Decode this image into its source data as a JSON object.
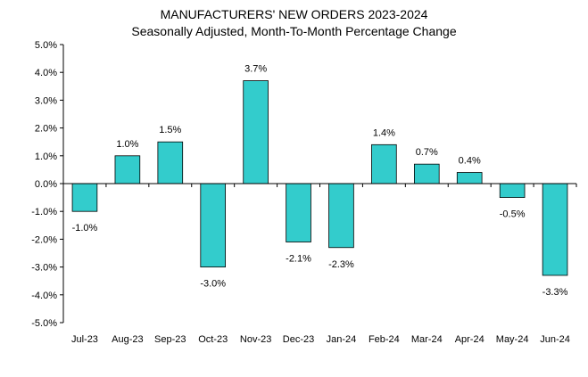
{
  "chart_data": {
    "type": "bar",
    "title": "MANUFACTURERS' NEW ORDERS 2023-2024",
    "subtitle": "Seasonally Adjusted,  Month-To-Month Percentage Change",
    "xlabel": "",
    "ylabel": "",
    "categories": [
      "Jul-23",
      "Aug-23",
      "Sep-23",
      "Oct-23",
      "Nov-23",
      "Dec-23",
      "Jan-24",
      "Feb-24",
      "Mar-24",
      "Apr-24",
      "May-24",
      "Jun-24"
    ],
    "values": [
      -1.0,
      1.0,
      1.5,
      -3.0,
      3.7,
      -2.1,
      -2.3,
      1.4,
      0.7,
      0.4,
      -0.5,
      -3.3
    ],
    "data_labels": [
      "-1.0%",
      "1.0%",
      "1.5%",
      "-3.0%",
      "3.7%",
      "-2.1%",
      "-2.3%",
      "1.4%",
      "0.7%",
      "0.4%",
      "-0.5%",
      "-3.3%"
    ],
    "ylim": [
      -5,
      5
    ],
    "yticks": [
      5,
      4,
      3,
      2,
      1,
      0,
      -1,
      -2,
      -3,
      -4,
      -5
    ],
    "ytick_labels": [
      "5.0%",
      "4.0%",
      "3.0%",
      "2.0%",
      "1.0%",
      "0.0%",
      "-1.0%",
      "-2.0%",
      "-3.0%",
      "-4.0%",
      "-5.0%"
    ],
    "grid": false,
    "legend": "none",
    "bar_color": "#33CCCC",
    "bar_edge_color": "#000000"
  }
}
